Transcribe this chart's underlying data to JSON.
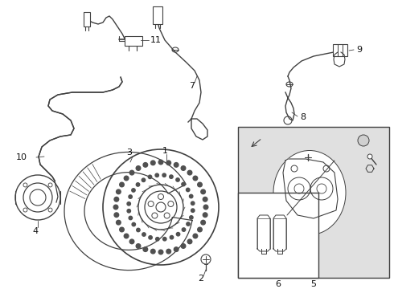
{
  "bg_color": "#ffffff",
  "line_color": "#404040",
  "panel_bg": "#e0e0e0",
  "label_color": "#111111",
  "fig_width": 4.9,
  "fig_height": 3.6,
  "dpi": 100
}
